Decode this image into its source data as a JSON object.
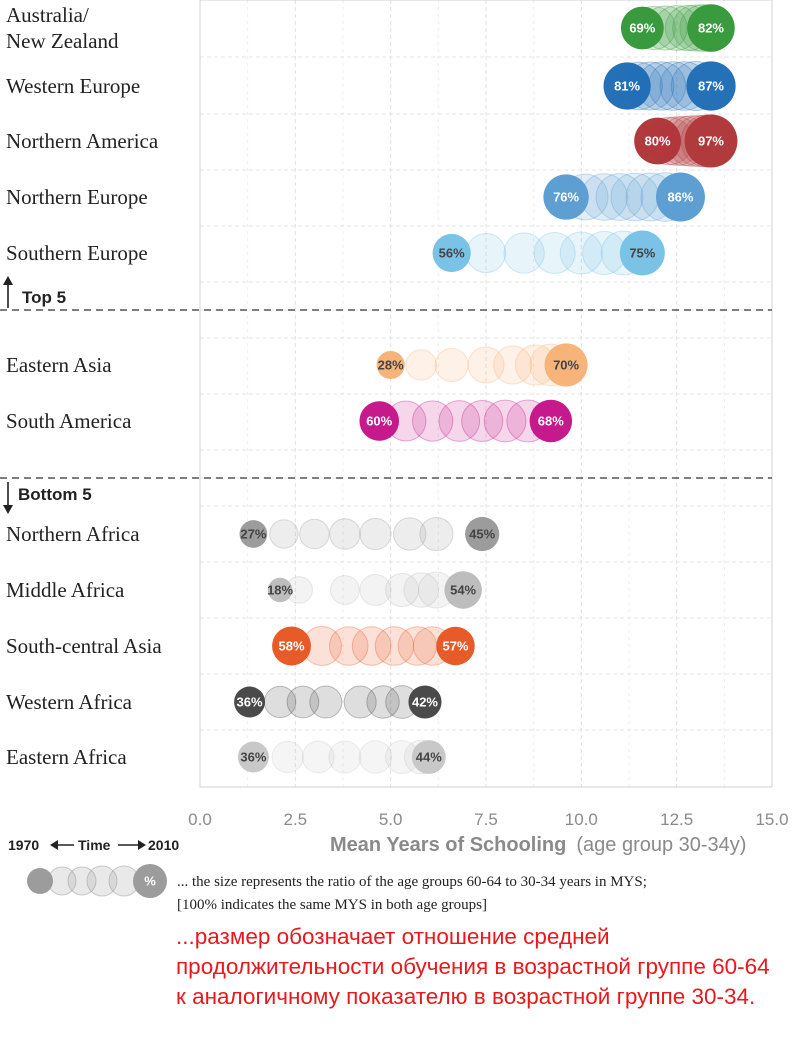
{
  "chart_data": {
    "type": "scatter",
    "xlabel": "Mean Years of Schooling",
    "xlabel_sub": "(age group 30-34y)",
    "xlim": [
      0,
      15
    ],
    "xticks": [
      "0.0",
      "2.5",
      "5.0",
      "7.5",
      "10.0",
      "12.5",
      "15.0"
    ],
    "xtick_values": [
      0,
      2.5,
      5,
      7.5,
      10,
      12.5,
      15
    ],
    "grid": true,
    "groups": [
      {
        "label": "Top 5",
        "arrow": "up"
      },
      {
        "label": "Bottom 5",
        "arrow": "down"
      }
    ],
    "regions": [
      {
        "name": "Australia/\nNew Zealand",
        "color": "#3a9a3e",
        "start_pct": "69%",
        "end_pct": "82%",
        "x": [
          11.6,
          11.9,
          12.2,
          12.5,
          12.8,
          13.0,
          13.2,
          13.4
        ],
        "ratio": [
          0.69,
          0.7,
          0.72,
          0.74,
          0.76,
          0.78,
          0.8,
          0.82
        ]
      },
      {
        "name": "Western Europe",
        "color": "#2471b8",
        "start_pct": "81%",
        "end_pct": "87%",
        "x": [
          11.2,
          11.5,
          11.8,
          12.1,
          12.4,
          12.7,
          13.0,
          13.4
        ],
        "ratio": [
          0.81,
          0.82,
          0.83,
          0.84,
          0.85,
          0.85,
          0.86,
          0.87
        ]
      },
      {
        "name": "Northern America",
        "color": "#b13a3d",
        "start_pct": "80%",
        "end_pct": "97%",
        "x": [
          12.0,
          12.3,
          12.5,
          12.7,
          12.9,
          13.1,
          13.3,
          13.4
        ],
        "ratio": [
          0.8,
          0.82,
          0.85,
          0.87,
          0.9,
          0.92,
          0.95,
          0.97
        ]
      },
      {
        "name": "Northern Europe",
        "color": "#5d9fd3",
        "start_pct": "76%",
        "end_pct": "86%",
        "x": [
          9.6,
          10.1,
          10.6,
          11.0,
          11.4,
          11.8,
          12.2,
          12.6
        ],
        "ratio": [
          0.76,
          0.77,
          0.79,
          0.8,
          0.82,
          0.83,
          0.85,
          0.86
        ]
      },
      {
        "name": "Southern Europe",
        "color": "#7ac3e6",
        "start_pct": "56%",
        "end_pct": "75%",
        "x": [
          6.6,
          7.5,
          8.5,
          9.3,
          10.0,
          10.6,
          11.1,
          11.6
        ],
        "ratio": [
          0.56,
          0.59,
          0.62,
          0.64,
          0.67,
          0.7,
          0.72,
          0.75
        ]
      },
      {
        "name": "Eastern Asia",
        "color": "#f7b47a",
        "start_pct": "28%",
        "end_pct": "70%",
        "x": [
          5.0,
          5.8,
          6.6,
          7.5,
          8.2,
          8.8,
          9.2,
          9.6
        ],
        "ratio": [
          0.28,
          0.35,
          0.42,
          0.5,
          0.56,
          0.62,
          0.66,
          0.7
        ]
      },
      {
        "name": "South America",
        "color": "#c61a8c",
        "start_pct": "60%",
        "end_pct": "68%",
        "x": [
          4.7,
          5.4,
          6.1,
          6.8,
          7.4,
          8.0,
          8.6,
          9.2
        ],
        "ratio": [
          0.6,
          0.61,
          0.62,
          0.63,
          0.64,
          0.66,
          0.67,
          0.68
        ]
      },
      {
        "name": "Northern Africa",
        "color": "#9c9c9c",
        "start_pct": "27%",
        "end_pct": "45%",
        "x": [
          1.4,
          2.2,
          3.0,
          3.8,
          4.6,
          5.5,
          6.2,
          7.4
        ],
        "ratio": [
          0.27,
          0.29,
          0.32,
          0.35,
          0.37,
          0.4,
          0.42,
          0.45
        ]
      },
      {
        "name": "Middle Africa",
        "color": "#bdbdbd",
        "start_pct": "18%",
        "end_pct": "54%",
        "x": [
          2.1,
          2.6,
          3.8,
          4.6,
          5.3,
          5.8,
          6.2,
          6.9
        ],
        "ratio": [
          0.18,
          0.24,
          0.3,
          0.36,
          0.42,
          0.46,
          0.5,
          0.54
        ]
      },
      {
        "name": "South-central Asia",
        "color": "#e75b28",
        "start_pct": "58%",
        "end_pct": "57%",
        "x": [
          2.4,
          3.2,
          3.9,
          4.5,
          5.1,
          5.7,
          6.1,
          6.7
        ],
        "ratio": [
          0.58,
          0.58,
          0.57,
          0.57,
          0.57,
          0.57,
          0.57,
          0.57
        ]
      },
      {
        "name": "Western Africa",
        "color": "#4a4a4a",
        "start_pct": "36%",
        "end_pct": "42%",
        "x": [
          1.3,
          2.1,
          2.7,
          3.3,
          4.2,
          4.8,
          5.3,
          5.9
        ],
        "ratio": [
          0.36,
          0.37,
          0.38,
          0.39,
          0.39,
          0.4,
          0.41,
          0.42
        ]
      },
      {
        "name": "Eastern Africa",
        "color": "#c8c8c8",
        "start_pct": "36%",
        "end_pct": "44%",
        "x": [
          1.4,
          2.3,
          3.1,
          3.8,
          4.6,
          5.3,
          5.8,
          6.0
        ],
        "ratio": [
          0.36,
          0.37,
          0.38,
          0.39,
          0.4,
          0.42,
          0.43,
          0.44
        ]
      }
    ],
    "legend": {
      "start_label": "1970",
      "time_label": "Time",
      "end_label": "2010",
      "symbol": "%",
      "note_line1": "... the size represents the ratio of the age groups 60-64 to 30-34 years in MYS;",
      "note_line2": "[100% indicates the same MYS in both age groups]"
    }
  },
  "annotation_ru": "...размер обозначает отношение средней продолжительности обучения в возрастной группе 60-64 к аналогичному показателю в возрастной группе 30-34."
}
